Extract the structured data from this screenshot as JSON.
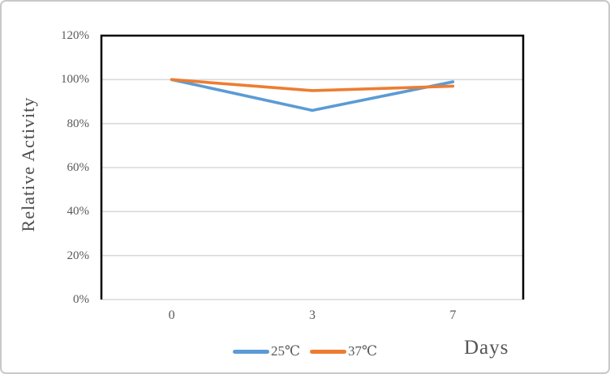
{
  "chart_data": {
    "type": "line",
    "title": "",
    "xlabel": "Days",
    "ylabel": "Relative Activity",
    "categories": [
      "0",
      "3",
      "7"
    ],
    "series": [
      {
        "name": "25℃",
        "color": "#5B9BD5",
        "values": [
          100,
          86,
          99
        ]
      },
      {
        "name": "37℃",
        "color": "#ED7D31",
        "values": [
          100,
          95,
          97
        ]
      }
    ],
    "value_unit": "%",
    "ylim": [
      0,
      120
    ],
    "yticks": [
      {
        "value": 0,
        "label": "0%"
      },
      {
        "value": 20,
        "label": "20%"
      },
      {
        "value": 40,
        "label": "40%"
      },
      {
        "value": 60,
        "label": "60%"
      },
      {
        "value": 80,
        "label": "80%"
      },
      {
        "value": 100,
        "label": "100%"
      },
      {
        "value": 120,
        "label": "120%"
      }
    ],
    "grid": "horizontal",
    "legend_position": "bottom",
    "colors": {
      "gridline": "#D9D9D9",
      "plot_border": "#000000",
      "tick_text": "#595959",
      "axis_title_text": "#4d4d4d"
    }
  }
}
